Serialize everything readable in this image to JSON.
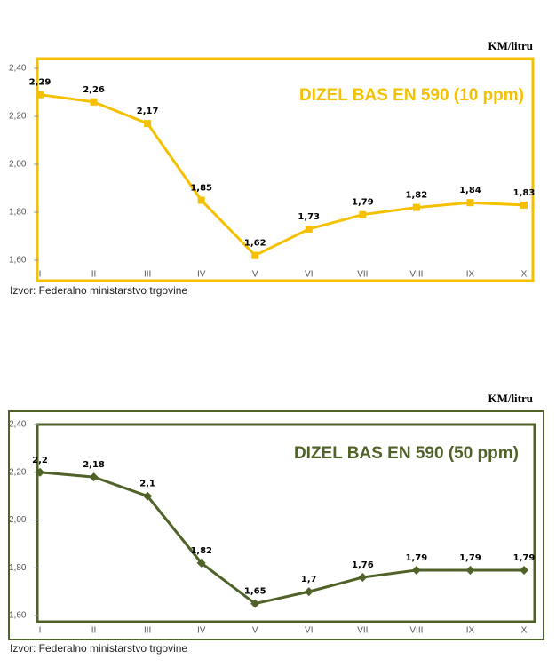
{
  "chart_data": [
    {
      "type": "line",
      "unit": "KM/litru",
      "title": "DIZEL BAS EN 590 (10 ppm)",
      "source": "Izvor: Federalno ministarstvo trgovine",
      "categories": [
        "I",
        "II",
        "III",
        "IV",
        "V",
        "VI",
        "VII",
        "VIII",
        "IX",
        "X"
      ],
      "values": [
        2.29,
        2.26,
        2.17,
        1.85,
        1.62,
        1.73,
        1.79,
        1.82,
        1.84,
        1.83
      ],
      "value_labels": [
        "2,29",
        "2,26",
        "2,17",
        "1,85",
        "1,62",
        "1,73",
        "1,79",
        "1,82",
        "1,84",
        "1,83"
      ],
      "color": "#f5c000",
      "marker": "square",
      "ylim": [
        1.6,
        2.4
      ],
      "yticks": [
        {
          "value": 1.6,
          "label": "1,60"
        },
        {
          "value": 1.8,
          "label": "1,80"
        },
        {
          "value": 2.0,
          "label": "2,00"
        },
        {
          "value": 2.2,
          "label": "2,20"
        },
        {
          "value": 2.4,
          "label": "2,40"
        }
      ]
    },
    {
      "type": "line",
      "unit": "KM/litru",
      "title": "DIZEL BAS EN 590 (50 ppm)",
      "source": "Izvor: Federalno ministarstvo trgovine",
      "categories": [
        "I",
        "II",
        "III",
        "IV",
        "V",
        "VI",
        "VII",
        "VIII",
        "IX",
        "X"
      ],
      "values": [
        2.2,
        2.18,
        2.1,
        1.82,
        1.65,
        1.7,
        1.76,
        1.79,
        1.79,
        1.79
      ],
      "value_labels": [
        "2,2",
        "2,18",
        "2,1",
        "1,82",
        "1,65",
        "1,7",
        "1,76",
        "1,79",
        "1,79",
        "1,79"
      ],
      "color": "#4f6228",
      "marker": "diamond",
      "ylim": [
        1.6,
        2.4
      ],
      "yticks": [
        {
          "value": 1.6,
          "label": "1,60"
        },
        {
          "value": 1.8,
          "label": "1,80"
        },
        {
          "value": 2.0,
          "label": "2,00"
        },
        {
          "value": 2.2,
          "label": "2,20"
        },
        {
          "value": 2.4,
          "label": "2,40"
        }
      ]
    }
  ]
}
